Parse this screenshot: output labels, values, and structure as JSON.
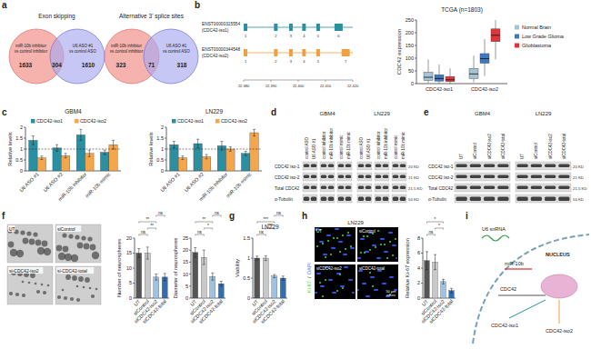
{
  "panel_labels": [
    "a",
    "b",
    "c",
    "d",
    "e",
    "f",
    "g",
    "h",
    "i"
  ],
  "venn": {
    "titles": [
      "Exon skipping",
      "Alternative 3' splice sites"
    ],
    "colors": [
      "#f4a09a",
      "#a9a9f0"
    ],
    "sets": [
      {
        "left": "miR-10b inhibitor",
        "left_sub": "vs control inhibitor",
        "right": "U6 ASO #1",
        "right_sub": "vs control ASO",
        "counts": [
          1633,
          304,
          1610
        ]
      },
      {
        "left": "miR-10b inhibitor",
        "left_sub": "vs control inhibitor",
        "right": "U6 ASO #1",
        "right_sub": "vs control ASO",
        "counts": [
          323,
          71,
          318
        ]
      }
    ]
  },
  "gene_model": {
    "transcripts": [
      {
        "id": "ENST00000315554",
        "name": "(CDC42-iso1)",
        "color": "#2a8fa0",
        "exons": [
          "1",
          "2",
          "3",
          "4",
          "5",
          "6"
        ]
      },
      {
        "id": "ENST00000344548",
        "name": "(CDC42-iso2)",
        "color": "#f0a040",
        "exons": [
          "1",
          "2",
          "3",
          "4",
          "5",
          "7"
        ]
      }
    ],
    "coords": [
      "22,380",
      "22,390",
      "22,400",
      "22,410",
      "22,420"
    ]
  },
  "blot_panels": [
    {
      "rows": [
        "CDC42 iso-1",
        "CDC42 iso-2",
        "Total CDC42",
        "α-Tubulin"
      ],
      "sizes": [
        "20 KD",
        "21 KD",
        "21.5 KD",
        "50 KD"
      ],
      "groups": [
        {
          "title": "GBM4",
          "lanes": [
            "control ASO",
            "U6 ASO #1",
            "control inhibitor",
            "miR-10b inhibitor",
            "control mimic",
            "miR-10b mimic"
          ]
        },
        {
          "title": "LN229",
          "lanes": [
            "control ASO",
            "U6 ASO #1",
            "control inhibitor",
            "miR-10b inhibitor",
            "control mimic",
            "miR-10b mimic"
          ]
        }
      ]
    },
    {
      "rows": [
        "CDC42 iso-1",
        "CDC42 iso-2",
        "Total CDC42",
        "α-Tubulin"
      ],
      "sizes": [
        "20 KD",
        "21 KD",
        "21.5 KD",
        "50 KD"
      ],
      "groups": [
        {
          "title": "GBM4",
          "lanes": [
            "UT",
            "siControl",
            "siCDC42-iso2",
            "siCDC42-total"
          ]
        },
        {
          "title": "LN229",
          "lanes": [
            "UT",
            "siControl",
            "siCDC42-iso2",
            "siCDC42-total"
          ]
        }
      ]
    }
  ],
  "images": {
    "f": {
      "labels": [
        "UT",
        "siControl",
        "si-CDC42-iso2",
        "si-CDC42-total"
      ]
    },
    "h": {
      "title": "LN229",
      "channels": [
        "Ki-67",
        "/",
        "DAPI"
      ],
      "labels": [
        "UT",
        "siControl",
        "siCDC42-iso2",
        "siCDC42-total"
      ],
      "scale": "50 μm"
    }
  },
  "diagram": {
    "labels": [
      "U6 snRNA",
      "NUCLEUS",
      "miR-10b",
      "CDC42",
      "CDC42-iso1",
      "CDC42-iso2"
    ]
  },
  "chart_data": [
    {
      "type": "box",
      "title": "TCGA (n=1803)",
      "y_label": "CDC42 expression",
      "categories": [
        "CDC42-iso1",
        "CDC42-iso2"
      ],
      "ylim": [
        0,
        250
      ],
      "yticks": [
        0,
        50,
        100,
        150,
        200,
        250
      ],
      "legend": "right",
      "series": [
        {
          "name": "Normal Brain",
          "color": "#a7c4d6",
          "whisker_low": [
            2,
            5
          ],
          "q1": [
            12,
            20
          ],
          "median": [
            25,
            38
          ],
          "q3": [
            45,
            60
          ],
          "whisker_high": [
            95,
            110
          ]
        },
        {
          "name": "Low Grade Glioma",
          "color": "#3d78c0",
          "whisker_low": [
            1,
            30
          ],
          "q1": [
            10,
            80
          ],
          "median": [
            20,
            98
          ],
          "q3": [
            35,
            118
          ],
          "whisker_high": [
            75,
            175
          ]
        },
        {
          "name": "Glioblastoma",
          "color": "#e0363a",
          "whisker_low": [
            0,
            95
          ],
          "q1": [
            8,
            165
          ],
          "median": [
            15,
            190
          ],
          "q3": [
            28,
            215
          ],
          "whisker_high": [
            60,
            250
          ]
        }
      ]
    },
    {
      "type": "bar",
      "title": "GBM4",
      "y_label": "Relative levels",
      "categories": [
        "U6 ASO #1",
        "U6 ASO #2",
        "miR-10b inhibitor",
        "miR-10b mimic"
      ],
      "ylim": [
        0,
        2
      ],
      "yticks": [
        0,
        0.5,
        1,
        1.5,
        2
      ],
      "legend": "top",
      "reference_line": 1,
      "series": [
        {
          "name": "CDC42-iso1",
          "color": "#2a8fa0",
          "values": [
            1.4,
            1.05,
            1.65,
            0.85
          ],
          "errors": [
            0.2,
            0.15,
            0.25,
            0.1
          ]
        },
        {
          "name": "CDC42-iso2",
          "color": "#f5a54a",
          "values": [
            0.6,
            0.7,
            0.8,
            1.2
          ],
          "errors": [
            0.08,
            0.1,
            0.15,
            0.2
          ]
        }
      ]
    },
    {
      "type": "bar",
      "title": "LN229",
      "y_label": "Relative levels",
      "categories": [
        "U6 ASO #1",
        "U6 ASO #2",
        "miR-10b inhibitor",
        "miR-10b mimic"
      ],
      "ylim": [
        0,
        2
      ],
      "yticks": [
        0,
        0.5,
        1,
        1.5,
        2
      ],
      "legend": "top",
      "reference_line": 1,
      "series": [
        {
          "name": "CDC42-iso1",
          "color": "#2a8fa0",
          "values": [
            1.2,
            1.25,
            1.15,
            0.8
          ],
          "errors": [
            0.15,
            0.2,
            0.2,
            0.1
          ]
        },
        {
          "name": "CDC42-iso2",
          "color": "#f5a54a",
          "values": [
            0.6,
            0.65,
            1.0,
            1.75
          ],
          "errors": [
            0.08,
            0.1,
            0.1,
            0.15
          ]
        }
      ]
    },
    {
      "type": "bar",
      "y_label": "Number of neurospheres",
      "categories": [
        "UT",
        "siControl",
        "siCDC42-iso2",
        "siCDC42-total"
      ],
      "ylim": [
        0,
        20
      ],
      "yticks": [
        0,
        5,
        10,
        15,
        20
      ],
      "values": [
        15,
        15,
        7,
        7
      ],
      "errors": [
        1.5,
        2,
        1,
        1.2
      ],
      "colors": [
        "#555555",
        "#c8c8c8",
        "#9cc3e6",
        "#2f6db5"
      ],
      "significance": [
        {
          "pair": [
            0,
            1
          ],
          "label": "ns"
        },
        {
          "pair": [
            1,
            2
          ],
          "label": "**"
        },
        {
          "pair": [
            0,
            2
          ],
          "label": "**"
        },
        {
          "pair": [
            2,
            3
          ],
          "label": "ns"
        }
      ]
    },
    {
      "type": "bar",
      "y_label": "Diameter of neurospheres",
      "categories": [
        "UT",
        "siControl",
        "siCDC42-iso2",
        "siCDC42-total"
      ],
      "ylim": [
        0,
        25
      ],
      "yticks": [
        0,
        5,
        10,
        15,
        20,
        25
      ],
      "values": [
        19,
        17,
        9,
        6
      ],
      "errors": [
        2,
        3,
        1.5,
        1
      ],
      "colors": [
        "#555555",
        "#c8c8c8",
        "#9cc3e6",
        "#2f6db5"
      ],
      "significance": [
        {
          "pair": [
            0,
            1
          ],
          "label": "ns"
        },
        {
          "pair": [
            1,
            2
          ],
          "label": "*"
        },
        {
          "pair": [
            0,
            2
          ],
          "label": "**"
        },
        {
          "pair": [
            2,
            3
          ],
          "label": "ns"
        }
      ]
    },
    {
      "type": "bar",
      "title": "LN229",
      "y_label": "Viability",
      "categories": [
        "UT",
        "siControl",
        "siCDC42-iso2",
        "siCDC42-total"
      ],
      "ylim": [
        0,
        1.5
      ],
      "yticks": [
        0,
        0.5,
        1,
        1.5
      ],
      "values": [
        1.0,
        1.0,
        0.55,
        0.5
      ],
      "errors": [
        0.05,
        0.06,
        0.04,
        0.05
      ],
      "colors": [
        "#555555",
        "#c8c8c8",
        "#9cc3e6",
        "#2f6db5"
      ],
      "significance": [
        {
          "pair": [
            0,
            1
          ],
          "label": "ns"
        },
        {
          "pair": [
            1,
            2
          ],
          "label": "***"
        },
        {
          "pair": [
            0,
            2
          ],
          "label": "***"
        },
        {
          "pair": [
            2,
            3
          ],
          "label": "ns"
        }
      ]
    },
    {
      "type": "bar",
      "y_label": "Relative Ki-67 expression",
      "categories": [
        "UT",
        "siControl",
        "siCDC42-iso2",
        "siCDC42-total"
      ],
      "ylim": [
        0,
        8
      ],
      "yticks": [
        0,
        2,
        4,
        6,
        8
      ],
      "values": [
        5,
        4.8,
        2.2,
        1
      ],
      "errors": [
        1.2,
        1,
        0.3,
        0.3
      ],
      "colors": [
        "#555555",
        "#c8c8c8",
        "#9cc3e6",
        "#2f6db5"
      ],
      "significance": [
        {
          "pair": [
            0,
            1
          ],
          "label": "ns"
        },
        {
          "pair": [
            1,
            2
          ],
          "label": "*"
        },
        {
          "pair": [
            0,
            2
          ],
          "label": "*"
        }
      ]
    }
  ]
}
